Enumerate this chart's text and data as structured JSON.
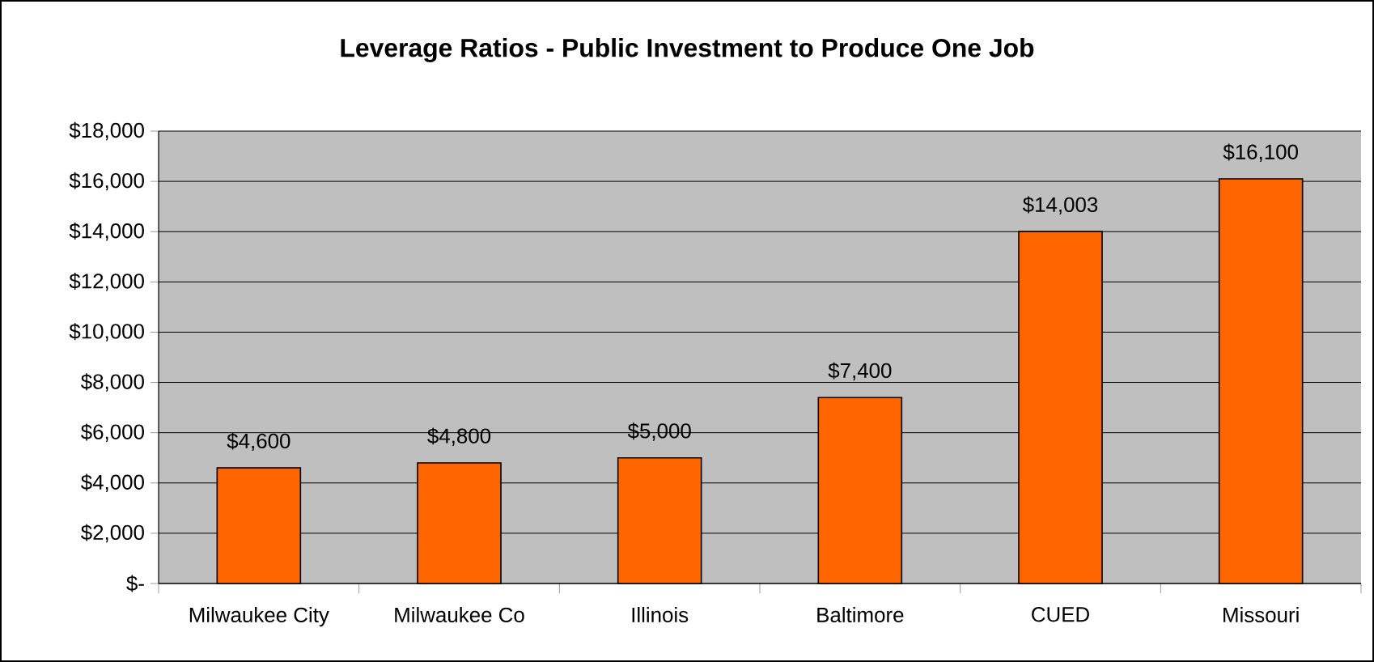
{
  "chart_data": {
    "type": "bar",
    "title": "Leverage Ratios - Public Investment to Produce One Job",
    "categories": [
      "Milwaukee City",
      "Milwaukee Co",
      "Illinois",
      "Baltimore",
      "CUED",
      "Missouri"
    ],
    "values": [
      4600,
      4800,
      5000,
      7400,
      14003,
      16100
    ],
    "value_labels": [
      "$4,600",
      "$4,800",
      "$5,000",
      "$7,400",
      "$14,003",
      "$16,100"
    ],
    "color": "#ff6600",
    "ylim": [
      0,
      18000
    ],
    "yticks": [
      {
        "value": 0,
        "label": "$-"
      },
      {
        "value": 2000,
        "label": "$2,000"
      },
      {
        "value": 4000,
        "label": "$4,000"
      },
      {
        "value": 6000,
        "label": "$6,000"
      },
      {
        "value": 8000,
        "label": "$8,000"
      },
      {
        "value": 10000,
        "label": "$10,000"
      },
      {
        "value": 12000,
        "label": "$12,000"
      },
      {
        "value": 14000,
        "label": "$14,000"
      },
      {
        "value": 16000,
        "label": "$16,000"
      },
      {
        "value": 18000,
        "label": "$18,000"
      }
    ],
    "grid": "y"
  }
}
